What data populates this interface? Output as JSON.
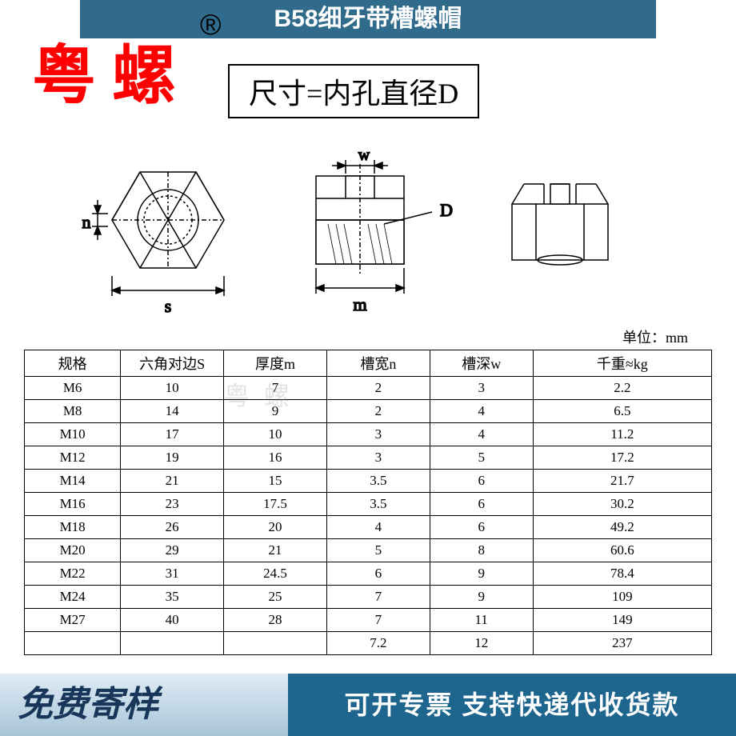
{
  "header": {
    "title": "B58细牙带槽螺帽",
    "bg_color": "#306b8c",
    "text_color": "#ffffff"
  },
  "watermark": {
    "main": "粤螺",
    "main_color": "#ff0000",
    "reg_symbol": "®",
    "faint": "粤螺"
  },
  "dim_note": "尺寸=内孔直径D",
  "unit_label": "单位：mm",
  "diagram": {
    "stroke": "#000000",
    "labels": {
      "n": "n",
      "s": "s",
      "w": "w",
      "m": "m",
      "D": "D"
    }
  },
  "table": {
    "columns": [
      "规格",
      "六角对边S",
      "厚度m",
      "槽宽n",
      "槽深w",
      "千重≈kg"
    ],
    "rows": [
      [
        "M6",
        "10",
        "7",
        "2",
        "3",
        "2.2"
      ],
      [
        "M8",
        "14",
        "9",
        "2",
        "4",
        "6.5"
      ],
      [
        "M10",
        "17",
        "10",
        "3",
        "4",
        "11.2"
      ],
      [
        "M12",
        "19",
        "16",
        "3",
        "5",
        "17.2"
      ],
      [
        "M14",
        "21",
        "15",
        "3.5",
        "6",
        "21.7"
      ],
      [
        "M16",
        "23",
        "17.5",
        "3.5",
        "6",
        "30.2"
      ],
      [
        "M18",
        "26",
        "20",
        "4",
        "6",
        "49.2"
      ],
      [
        "M20",
        "29",
        "21",
        "5",
        "8",
        "60.6"
      ],
      [
        "M22",
        "31",
        "24.5",
        "6",
        "9",
        "78.4"
      ],
      [
        "M24",
        "35",
        "25",
        "7",
        "9",
        "109"
      ],
      [
        "M27",
        "40",
        "28",
        "7",
        "11",
        "149"
      ],
      [
        "",
        "",
        "",
        "7.2",
        "12",
        "237"
      ]
    ],
    "col_widths": [
      "14%",
      "15%",
      "15%",
      "15%",
      "15%",
      "26%"
    ]
  },
  "footer": {
    "left_text": "免费寄样",
    "left_bg_top": "#e0ecf5",
    "left_bg_bottom": "#a8c5d8",
    "left_color": "#18365a",
    "right_text": "可开专票 支持快递代收货款",
    "right_bg": "#1f668f",
    "right_color": "#ffffff"
  }
}
